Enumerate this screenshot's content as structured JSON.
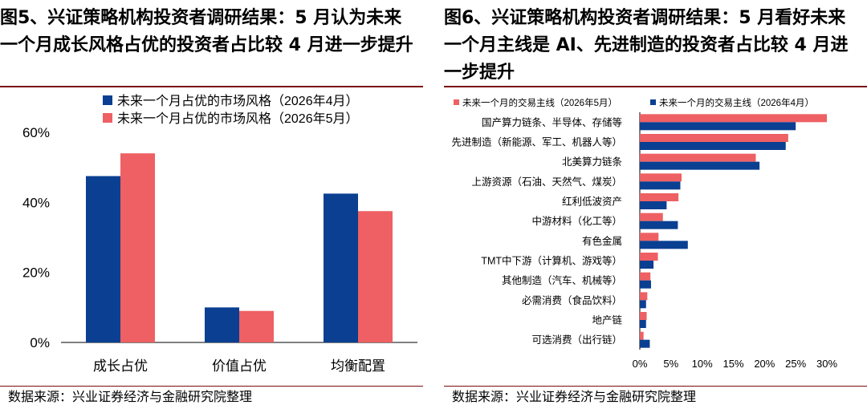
{
  "left": {
    "title": "图5、兴证策略机构投资者调研结果：5 月认为未来一个月成长风格占优的投资者占比较 4 月进一步提升",
    "source": "数据来源：兴业证券经济与金融研究院整理",
    "colors": {
      "apr": "#0a3f91",
      "may": "#ee6063"
    },
    "chart_data": {
      "type": "bar",
      "categories": [
        "成长占优",
        "价值占优",
        "均衡配置"
      ],
      "series": [
        {
          "name": "未来一个月占优的市场风格（2026年4月）",
          "values": [
            47.5,
            10.0,
            42.5
          ]
        },
        {
          "name": "未来一个月占优的市场风格（2026年5月）",
          "values": [
            54.0,
            9.0,
            37.5
          ]
        }
      ],
      "yticks": [
        "0%",
        "20%",
        "40%",
        "60%"
      ],
      "ylim": [
        0,
        60
      ],
      "legend": "top"
    }
  },
  "right": {
    "title": "图6、兴证策略机构投资者调研结果：5 月看好未来一个月主线是 AI、先进制造的投资者占比较 4 月进一步提升",
    "source": "数据来源：兴业证券经济与金融研究院整理",
    "colors": {
      "may": "#ee6063",
      "apr": "#0a3f91"
    },
    "chart_data": {
      "type": "bar",
      "orientation": "horizontal",
      "categories": [
        "国产算力链条、半导体、存储等",
        "先进制造（新能源、军工、机器人等）",
        "北美算力链条",
        "上游资源（石油、天然气、煤炭）",
        "红利低波资产",
        "中游材料（化工等）",
        "有色金属",
        "TMT中下游（计算机、游戏等）",
        "其他制造（汽车、机械等）",
        "必需消费（食品饮料）",
        "地产链",
        "可选消费（出行链）"
      ],
      "series": [
        {
          "name": "未来一个月的交易主线（2026年5月）",
          "values": [
            30.0,
            23.8,
            18.6,
            6.7,
            6.2,
            3.7,
            3.0,
            2.9,
            1.7,
            1.2,
            1.1,
            0.6
          ]
        },
        {
          "name": "未来一个月的交易主线（2026年4月）",
          "values": [
            25.0,
            23.4,
            19.2,
            6.5,
            4.3,
            6.1,
            7.7,
            2.2,
            1.8,
            1.0,
            1.0,
            1.6
          ]
        }
      ],
      "xticks": [
        "0%",
        "5%",
        "10%",
        "15%",
        "20%",
        "25%",
        "30%"
      ],
      "xlim": [
        0,
        30
      ],
      "legend": "top"
    }
  }
}
